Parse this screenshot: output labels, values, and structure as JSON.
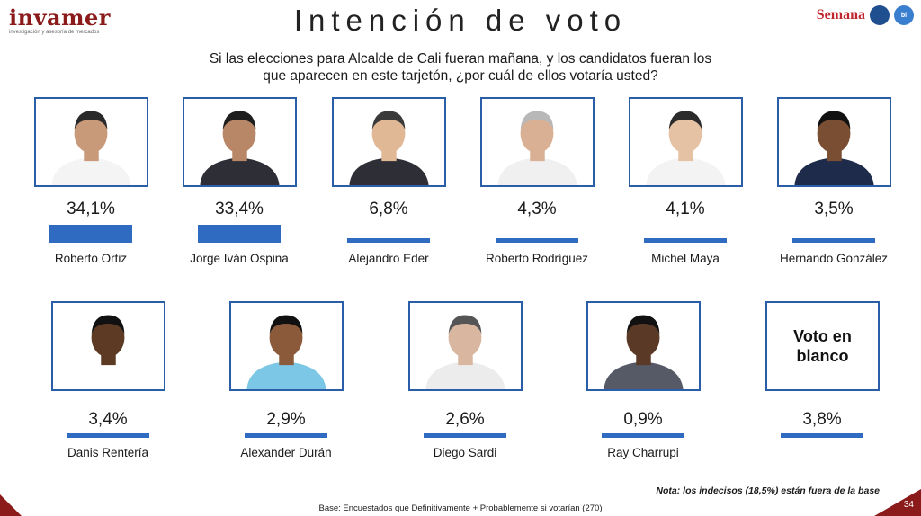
{
  "header": {
    "logo_left": "invamer",
    "logo_left_sub": "investigación y asesoría de mercados",
    "title": "Intención de voto",
    "logo_semana": "Semana",
    "badge_1": "",
    "badge_2": "bl"
  },
  "question": {
    "line1": "Si las elecciones para Alcalde de Cali fueran mañana, y los candidatos fueran los",
    "line2": "que aparecen en este tarjetón, ¿por cuál de ellos votaría usted?"
  },
  "chart_data": {
    "type": "bar",
    "title": "Intención de voto",
    "unit": "%",
    "categories": [
      "Roberto Ortiz",
      "Jorge Iván Ospina",
      "Alejandro Eder",
      "Roberto Rodríguez",
      "Michel Maya",
      "Hernando González",
      "Danis Rentería",
      "Alexander Durán",
      "Diego Sardi",
      "Ray Charrupi",
      "Voto en blanco"
    ],
    "values": [
      34.1,
      33.4,
      6.8,
      4.3,
      4.1,
      3.5,
      3.4,
      2.9,
      2.6,
      0.9,
      3.8
    ],
    "labels": [
      "34,1%",
      "33,4%",
      "6,8%",
      "4,3%",
      "4,1%",
      "3,5%",
      "3,4%",
      "2,9%",
      "2,6%",
      "0,9%",
      "3,8%"
    ],
    "blank_card_text": "Voto en\nblanco",
    "bar_color": "#2f6bc0"
  },
  "footer": {
    "note": "Nota: los indecisos (18,5%) están fuera de la base",
    "base": "Base: Encuestados que Definitivamente + Probablemente si votarían (270)",
    "page": "34"
  }
}
